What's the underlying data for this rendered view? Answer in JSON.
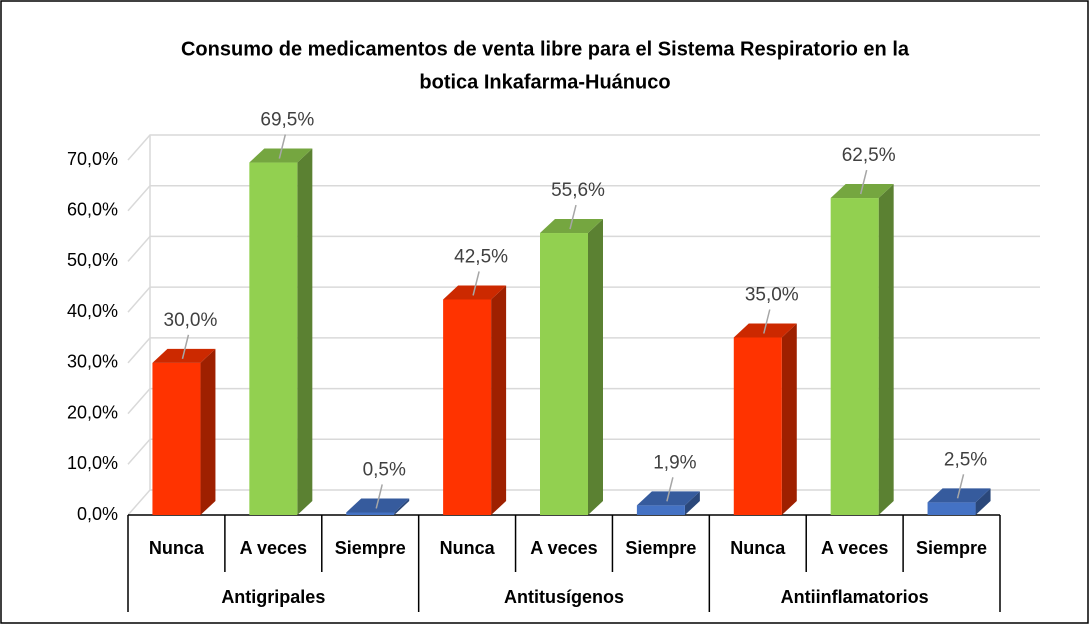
{
  "chart_data": {
    "type": "bar",
    "title": [
      "Consumo de medicamentos de venta libre para el Sistema Respiratorio en la",
      "botica Inkafarma-Huánuco"
    ],
    "groups": [
      "Antigripales",
      "Antitusígenos",
      "Antiinflamatorios"
    ],
    "categories": [
      "Nunca",
      "A veces",
      "Siempre",
      "Nunca",
      "A veces",
      "Siempre",
      "Nunca",
      "A veces",
      "Siempre"
    ],
    "values": [
      30.0,
      69.5,
      0.5,
      42.5,
      55.6,
      1.9,
      35.0,
      62.5,
      2.5
    ],
    "value_labels": [
      "30,0%",
      "69,5%",
      "0,5%",
      "42,5%",
      "55,6%",
      "1,9%",
      "35,0%",
      "62,5%",
      "2,5%"
    ],
    "colors": [
      "#ff3300",
      "#92d050",
      "#4472c4",
      "#ff3300",
      "#92d050",
      "#4472c4",
      "#ff3300",
      "#92d050",
      "#4472c4"
    ],
    "ylim": [
      0,
      70
    ],
    "yticks": [
      {
        "value": 0,
        "label": "0,0%"
      },
      {
        "value": 10,
        "label": "10,0%"
      },
      {
        "value": 20,
        "label": "20,0%"
      },
      {
        "value": 30,
        "label": "30,0%"
      },
      {
        "value": 40,
        "label": "40,0%"
      },
      {
        "value": 50,
        "label": "50,0%"
      },
      {
        "value": 60,
        "label": "60,0%"
      },
      {
        "value": 70,
        "label": "70,0%"
      }
    ],
    "grid": true
  }
}
